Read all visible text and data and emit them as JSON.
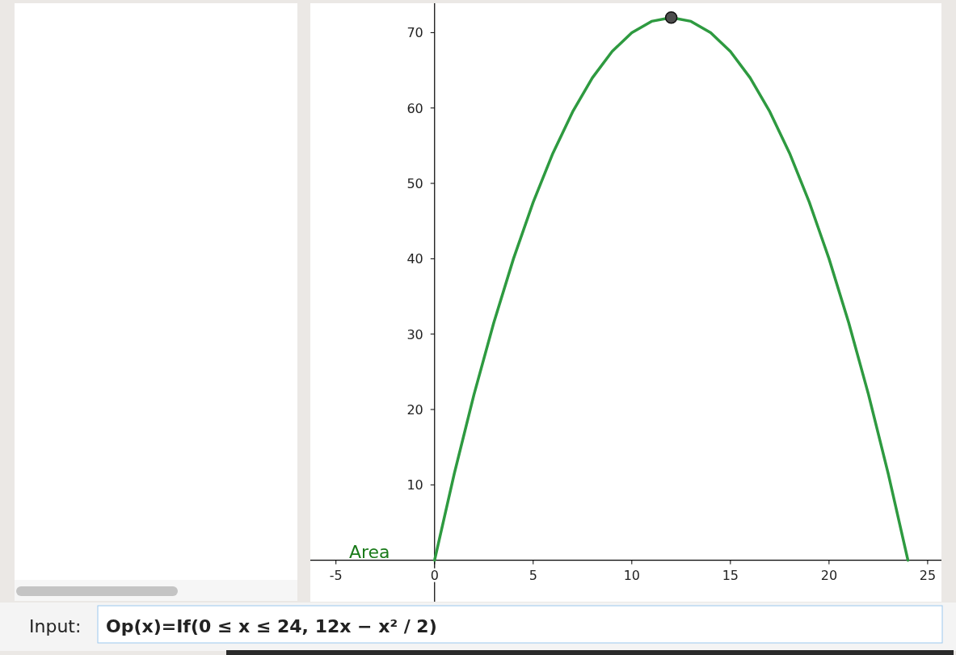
{
  "chart_data": {
    "type": "line",
    "xlim": [
      -6.3,
      25.7
    ],
    "ylim": [
      -5.5,
      73.9
    ],
    "xticks": [
      -5,
      0,
      5,
      10,
      15,
      20,
      25
    ],
    "yticks": [
      10,
      20,
      30,
      40,
      50,
      60,
      70
    ],
    "grid": false,
    "series": [
      {
        "color": "#2e9a40",
        "marker": "none",
        "x": [
          0,
          1,
          2,
          3,
          4,
          5,
          6,
          7,
          8,
          9,
          10,
          11,
          12,
          13,
          14,
          15,
          16,
          17,
          18,
          19,
          20,
          21,
          22,
          23,
          24
        ],
        "values": [
          0,
          11.5,
          22,
          31.5,
          40,
          47.5,
          54,
          59.5,
          64,
          67.5,
          70,
          71.5,
          72,
          71.5,
          70,
          67.5,
          64,
          59.5,
          54,
          47.5,
          40,
          31.5,
          22,
          11.5,
          0
        ]
      },
      {
        "type": "scatter",
        "color": "#4d4d4d",
        "marker": "circle",
        "x": [
          12
        ],
        "values": [
          72
        ]
      }
    ],
    "annotations": [
      "Area",
      "Input: Op(x)=If(0 ≤ x ≤ 24, 12x − x² / 2)"
    ]
  }
}
